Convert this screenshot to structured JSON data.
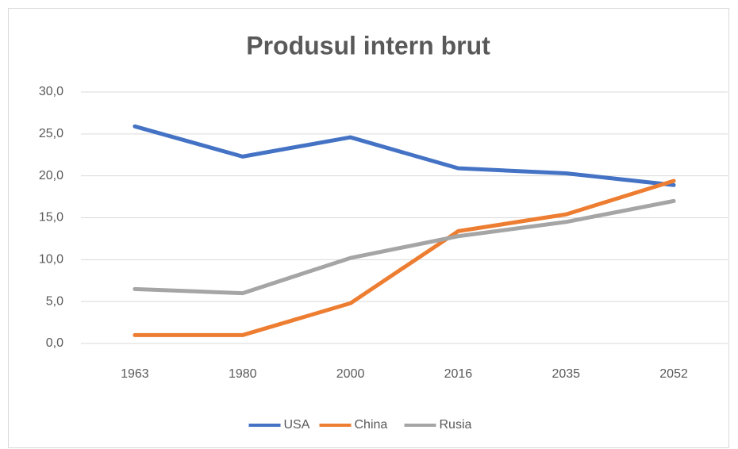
{
  "chart_data": {
    "type": "line",
    "title": "Produsul intern brut",
    "categories": [
      "1963",
      "1980",
      "2000",
      "2016",
      "2035",
      "2052"
    ],
    "series": [
      {
        "name": "USA",
        "color": "#4472c4",
        "values": [
          25.9,
          22.3,
          24.6,
          20.9,
          20.3,
          18.9
        ]
      },
      {
        "name": "China",
        "color": "#ed7d31",
        "values": [
          1.0,
          1.0,
          4.8,
          13.4,
          15.4,
          19.4
        ]
      },
      {
        "name": "Rusia",
        "color": "#a5a5a5",
        "values": [
          6.5,
          6.0,
          10.2,
          12.8,
          14.5,
          17.0
        ]
      }
    ],
    "ylim": [
      0,
      30
    ],
    "yticks": [
      {
        "value": 0,
        "label": "0,0"
      },
      {
        "value": 5,
        "label": "5,0"
      },
      {
        "value": 10,
        "label": "10,0"
      },
      {
        "value": 15,
        "label": "15,0"
      },
      {
        "value": 20,
        "label": "20,0"
      },
      {
        "value": 25,
        "label": "25,0"
      },
      {
        "value": 30,
        "label": "30,0"
      }
    ],
    "grid": true,
    "legend": "bottom"
  }
}
